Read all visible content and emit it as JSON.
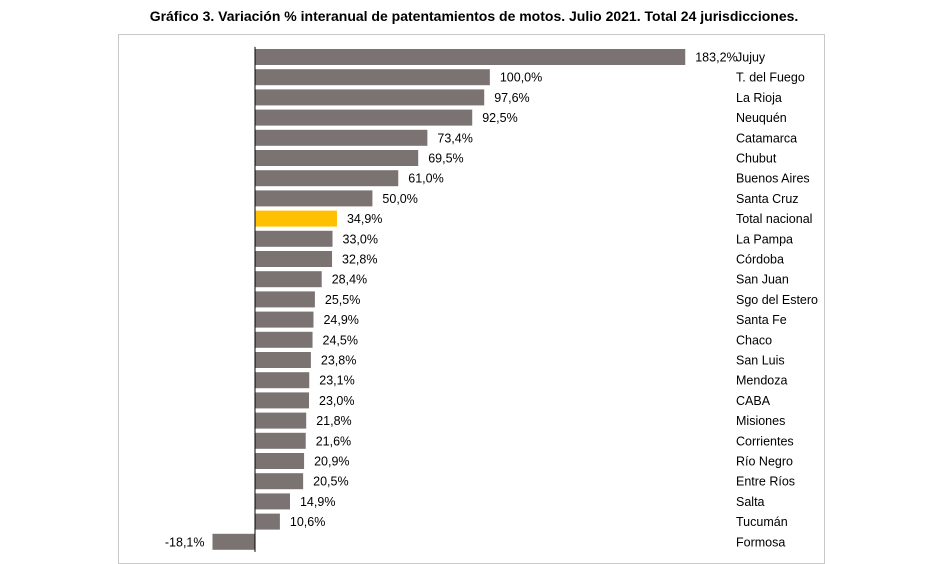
{
  "title": "Gráfico 3. Variación % interanual de patentamientos de motos. Julio 2021. Total 24 jurisdicciones.",
  "colors": {
    "bar": "#7a7372",
    "highlight": "#ffc000",
    "axis": "#000000",
    "frame": "#c8c8c8"
  },
  "chart_data": {
    "type": "bar",
    "orientation": "horizontal",
    "title": "Gráfico 3. Variación % interanual de patentamientos de motos. Julio 2021. Total 24 jurisdicciones.",
    "highlight_category": "Total nacional",
    "categories": [
      "Jujuy",
      "T. del Fuego",
      "La Rioja",
      "Neuquén",
      "Catamarca",
      "Chubut",
      "Buenos Aires",
      "Santa Cruz",
      "Total nacional",
      "La Pampa",
      "Córdoba",
      "San Juan",
      "Sgo del Estero",
      "Santa Fe",
      "Chaco",
      "San Luis",
      "Mendoza",
      "CABA",
      "Misiones",
      "Corrientes",
      "Río Negro",
      "Entre Ríos",
      "Salta",
      "Tucumán",
      "Formosa"
    ],
    "values": [
      183.2,
      100.0,
      97.6,
      92.5,
      73.4,
      69.5,
      61.0,
      50.0,
      34.9,
      33.0,
      32.8,
      28.4,
      25.5,
      24.9,
      24.5,
      23.8,
      23.1,
      23.0,
      21.8,
      21.6,
      20.9,
      20.5,
      14.9,
      10.6,
      -18.1
    ],
    "value_labels": [
      "183,2%",
      "100,0%",
      "97,6%",
      "92,5%",
      "73,4%",
      "69,5%",
      "61,0%",
      "50,0%",
      "34,9%",
      "33,0%",
      "32,8%",
      "28,4%",
      "25,5%",
      "24,9%",
      "24,5%",
      "23,8%",
      "23,1%",
      "23,0%",
      "21,8%",
      "21,6%",
      "20,9%",
      "20,5%",
      "14,9%",
      "10,6%",
      "-18,1%"
    ],
    "xlim": [
      -20,
      190
    ],
    "grid": false,
    "legend": "none"
  }
}
